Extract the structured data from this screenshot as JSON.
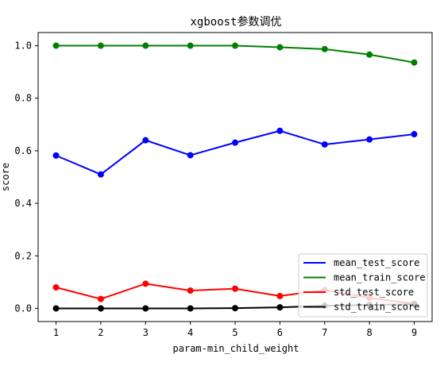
{
  "chart_data": {
    "type": "line",
    "title": "xgboost参数调优",
    "xlabel": "param-min_child_weight",
    "ylabel": "score",
    "x": [
      1,
      2,
      3,
      4,
      5,
      6,
      7,
      8,
      9
    ],
    "xlim": [
      0.6,
      9.4
    ],
    "ylim": [
      -0.05,
      1.05
    ],
    "xticks": [
      "1",
      "2",
      "3",
      "4",
      "5",
      "6",
      "7",
      "8",
      "9"
    ],
    "yticks": [
      "0.0",
      "0.2",
      "0.4",
      "0.6",
      "0.8",
      "1.0"
    ],
    "grid": false,
    "legend_position": "lower-right",
    "series": [
      {
        "name": "mean_test_score",
        "color": "#0000ff",
        "values": [
          0.582,
          0.51,
          0.64,
          0.583,
          0.631,
          0.676,
          0.624,
          0.643,
          0.663
        ]
      },
      {
        "name": "mean_train_score",
        "color": "#008000",
        "values": [
          1.0,
          1.0,
          1.0,
          1.0,
          1.0,
          0.994,
          0.987,
          0.966,
          0.936
        ]
      },
      {
        "name": "std_test_score",
        "color": "#ff0000",
        "values": [
          0.08,
          0.036,
          0.094,
          0.068,
          0.075,
          0.047,
          0.07,
          0.04,
          0.018
        ]
      },
      {
        "name": "std_train_score",
        "color": "#000000",
        "values": [
          0.0,
          0.0,
          0.0,
          0.0,
          0.001,
          0.004,
          0.01,
          0.013,
          0.016
        ]
      }
    ]
  }
}
